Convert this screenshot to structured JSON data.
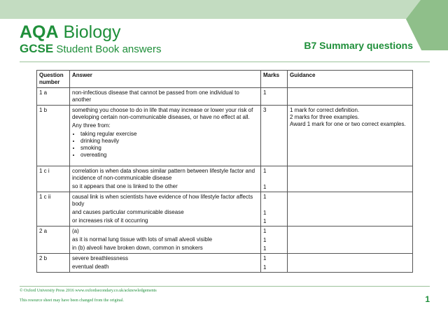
{
  "header": {
    "logo_line1_bold": "AQA",
    "logo_line1": "Biology",
    "logo_line2_bold": "GCSE",
    "logo_line2": "Student Book answers",
    "title": "B7 Summary questions"
  },
  "columns": [
    "Question number",
    "Answer",
    "Marks",
    "Guidance"
  ],
  "rows": [
    {
      "q": "1 a",
      "answer": [
        "non-infectious disease that cannot be passed from one individual to another"
      ],
      "marks": [
        "1"
      ],
      "guidance": []
    },
    {
      "q": "1 b",
      "answer": [
        "something you choose to do in life that may increase or lower your risk of developing certain non-communicable diseases, or have no effect at all.",
        "Any three from:"
      ],
      "bullets": [
        "taking regular exercise",
        "drinking heavily",
        "smoking",
        "overeating"
      ],
      "marks": [
        "3"
      ],
      "guidance": [
        "1 mark for correct definition.",
        "2 marks for three examples.",
        "Award 1 mark for one or two correct examples."
      ]
    },
    {
      "q": "1 c i",
      "answer": [
        "correlation is when data shows similar pattern between lifestyle factor and incidence of non-communicable disease",
        "so it appears that one is linked to the other"
      ],
      "marks": [
        "1",
        "1"
      ],
      "guidance": []
    },
    {
      "q": "1 c ii",
      "answer": [
        "causal link is when scientists have evidence of how lifestyle factor affects body",
        "and causes particular communicable disease",
        "or increases risk of it occurring"
      ],
      "marks": [
        "1",
        "1",
        "1"
      ],
      "guidance": []
    },
    {
      "q": "2 a",
      "answer": [
        "(a)",
        "as it is normal lung tissue with lots of small alveoli visible",
        "in (b) alveoli have broken down, common in smokers"
      ],
      "marks": [
        "1",
        "1",
        "1"
      ],
      "guidance": []
    },
    {
      "q": "2 b",
      "answer": [
        "severe breathlessness",
        "eventual death"
      ],
      "marks": [
        "1",
        "1"
      ],
      "guidance": []
    }
  ],
  "footer": {
    "copyright": "© Oxford University Press 2016   www.oxfordsecondary.co.uk/acknowledgements",
    "note": "This resource sheet may have been changed from the original.",
    "page": "1"
  }
}
